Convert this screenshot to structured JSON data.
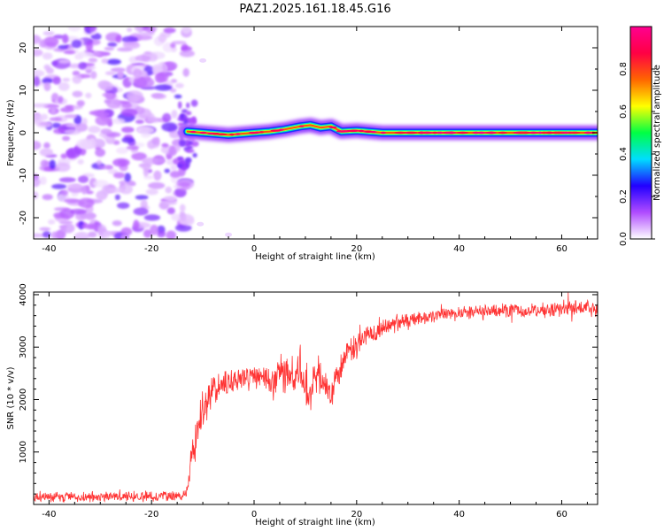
{
  "figure": {
    "title": "PAZ1.2025.161.18.45.G16"
  },
  "chart_data": [
    {
      "type": "heatmap",
      "title": "PAZ1.2025.161.18.45.G16",
      "xlabel": "Height of straight line (km)",
      "ylabel": "Frequency (Hz)",
      "xlim": [
        -43,
        67
      ],
      "ylim": [
        -25,
        25
      ],
      "xticks": [
        -40,
        -20,
        0,
        20,
        40,
        60
      ],
      "yticks": [
        -20,
        -10,
        0,
        10,
        20
      ],
      "noise_region_x": [
        -43,
        -13
      ],
      "signal_onset_x": -13,
      "ridge": {
        "x": [
          -13,
          -10,
          -5,
          0,
          3,
          6,
          9,
          11,
          13,
          15,
          17,
          20,
          25,
          30,
          40,
          50,
          60,
          67
        ],
        "y": [
          0.3,
          0,
          -0.5,
          0,
          0.3,
          0.8,
          1.5,
          1.8,
          1.2,
          1.5,
          0.3,
          0.5,
          0,
          0,
          0,
          0,
          0,
          0
        ]
      },
      "colorbar": {
        "label": "Normalized spectral amplitude",
        "range": [
          0,
          1
        ],
        "ticks": [
          0.0,
          0.2,
          0.4,
          0.6,
          0.8
        ],
        "tick_labels": [
          "0.0",
          "0.2",
          "0.4",
          "0.6",
          "0.8"
        ],
        "colors": [
          "#ffffff",
          "#b04cff",
          "#2200ff",
          "#00ddff",
          "#00ff44",
          "#ffff00",
          "#ff6600",
          "#ff0044",
          "#ff0090"
        ]
      },
      "grid": false
    },
    {
      "type": "line",
      "xlabel": "Height of straight line (km)",
      "ylabel": "SNR (10 * v/v)",
      "xlim": [
        -43,
        67
      ],
      "ylim": [
        0,
        4050
      ],
      "xticks": [
        -40,
        -20,
        0,
        20,
        40,
        60
      ],
      "yticks": [
        1000,
        2000,
        3000,
        4000
      ],
      "series": [
        {
          "color": "#ff3333",
          "x": [
            -43,
            -35,
            -25,
            -17,
            -14,
            -13,
            -12,
            -11,
            -10,
            -9,
            -8,
            -7,
            -6,
            -4,
            -2,
            0,
            2,
            4,
            5,
            6,
            8,
            9,
            10,
            11,
            12,
            13,
            14,
            15,
            16,
            18,
            20,
            22,
            24,
            26,
            28,
            30,
            35,
            40,
            45,
            50,
            55,
            60,
            65,
            67
          ],
          "y": [
            150,
            140,
            150,
            160,
            170,
            250,
            1000,
            1400,
            1800,
            2000,
            2150,
            2250,
            2300,
            2350,
            2400,
            2450,
            2450,
            2300,
            2700,
            2550,
            2350,
            2600,
            2300,
            2050,
            2500,
            2400,
            2250,
            2100,
            2400,
            2900,
            3000,
            3250,
            3300,
            3400,
            3450,
            3500,
            3600,
            3650,
            3680,
            3700,
            3700,
            3720,
            3750,
            3700
          ],
          "noise_amplitude": [
            120,
            120,
            120,
            120,
            120,
            150,
            400,
            500,
            500,
            450,
            400,
            350,
            300,
            300,
            300,
            300,
            350,
            400,
            500,
            500,
            450,
            500,
            500,
            450,
            450,
            450,
            400,
            400,
            350,
            300,
            250,
            250,
            220,
            200,
            200,
            180,
            150,
            150,
            150,
            180,
            180,
            200,
            200,
            200
          ]
        }
      ],
      "grid": false
    }
  ]
}
